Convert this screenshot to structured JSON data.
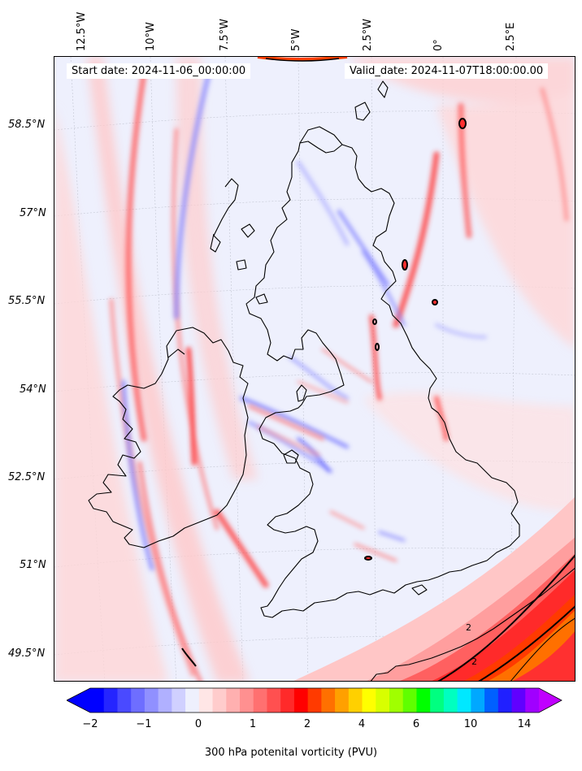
{
  "header": {
    "start_date": "Start date: 2024-11-06_00:00:00",
    "valid_date": "Valid_date: 2024-11-07T18:00:00.00"
  },
  "axes": {
    "lon_labels": [
      "12.5°W",
      "10°W",
      "7.5°W",
      "5°W",
      "2.5°W",
      "0°",
      "2.5°E"
    ],
    "lat_labels": [
      "58.5°N",
      "57°N",
      "55.5°N",
      "54°N",
      "52.5°N",
      "51°N",
      "49.5°N"
    ]
  },
  "colorbar": {
    "label": "300 hPa potenital vorticity (PVU)",
    "ticks": [
      "−2",
      "−1",
      "0",
      "1",
      "2",
      "4",
      "6",
      "10",
      "14"
    ],
    "colors": [
      "#0000ff",
      "#2525ff",
      "#4a4aff",
      "#6e6eff",
      "#9090ff",
      "#b0b0ff",
      "#d0d0ff",
      "#eef0fd",
      "#ffe6e6",
      "#ffcccc",
      "#ffb0b0",
      "#ff9090",
      "#ff7070",
      "#ff5050",
      "#ff2a2a",
      "#ff0000",
      "#ff3a00",
      "#ff7000",
      "#ffa000",
      "#ffd000",
      "#ffff00",
      "#d8ff00",
      "#a0ff00",
      "#60ff00",
      "#00ff00",
      "#00ff80",
      "#00ffc0",
      "#00e8ff",
      "#00a8ff",
      "#0060ff",
      "#2020ff",
      "#6000ff",
      "#a000ff"
    ],
    "extend_low_color": "#0000ff",
    "extend_high_color": "#c000ff"
  },
  "map": {
    "background_color": "#eef0fd",
    "coastline_color": "#000000",
    "contour_labels": [
      "2",
      "2"
    ]
  }
}
